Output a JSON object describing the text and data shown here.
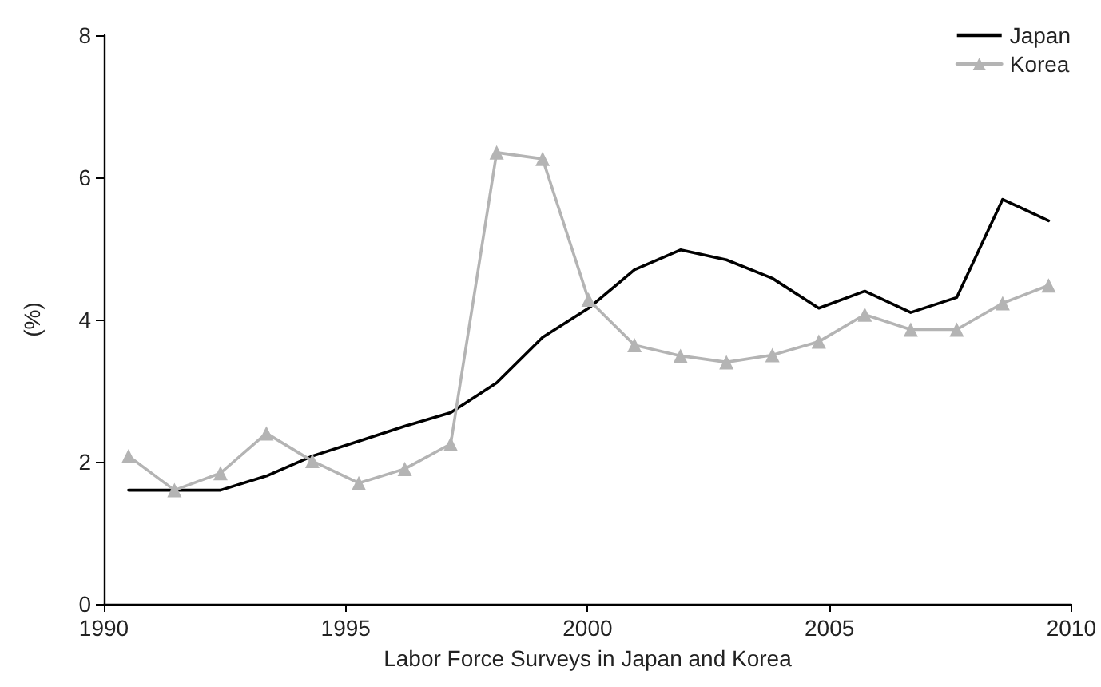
{
  "chart_data": {
    "type": "line",
    "xlabel": "Labor Force Surveys in Japan and Korea",
    "ylabel": "(%)",
    "x": [
      1990.51,
      1991.46,
      1992.41,
      1993.36,
      1994.31,
      1995.27,
      1996.22,
      1997.17,
      1998.12,
      1999.07,
      2000.02,
      2000.97,
      2001.92,
      2002.87,
      2003.82,
      2004.78,
      2005.73,
      2006.68,
      2007.63,
      2008.58,
      2009.53
    ],
    "series": [
      {
        "name": "Japan",
        "color": "#000000",
        "marker": "none",
        "values": [
          1.6,
          1.6,
          1.6,
          1.8,
          2.08,
          2.29,
          2.5,
          2.69,
          3.11,
          3.75,
          4.16,
          4.7,
          4.98,
          4.84,
          4.58,
          4.16,
          4.4,
          4.1,
          4.31,
          5.69,
          5.39
        ]
      },
      {
        "name": "Korea",
        "color": "#b4b4b4",
        "marker": "triangle",
        "values": [
          2.08,
          1.6,
          1.84,
          2.4,
          2.01,
          1.7,
          1.9,
          2.25,
          6.35,
          6.26,
          4.28,
          3.64,
          3.49,
          3.4,
          3.5,
          3.69,
          4.07,
          3.86,
          3.86,
          4.23,
          4.48
        ]
      }
    ],
    "xlim": [
      1990,
      2010
    ],
    "xticks": [
      1990,
      1995,
      2000,
      2005,
      2010
    ],
    "ylim": [
      0,
      8
    ],
    "yticks": [
      0,
      2,
      4,
      6,
      8
    ],
    "grid": false,
    "legend": "top right"
  }
}
